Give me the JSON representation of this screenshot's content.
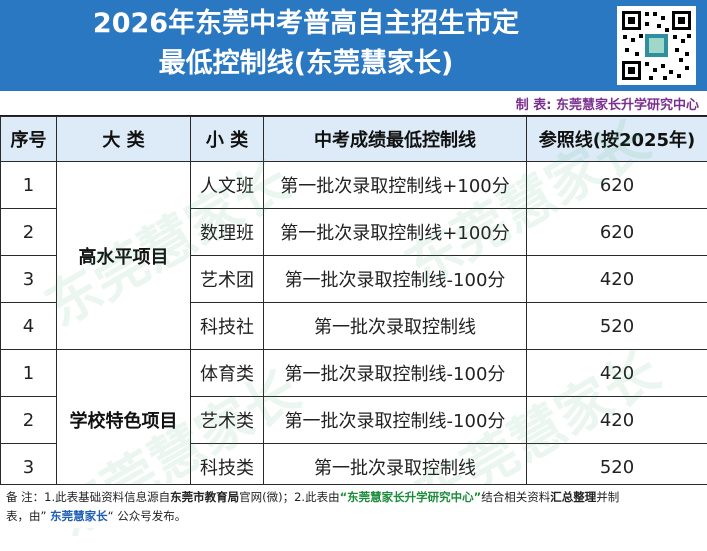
{
  "header": {
    "title_line1": "2026年东莞中考普高自主招生市定",
    "title_line2": "最低控制线(东莞慧家长)",
    "maker": "制 表: 东莞慧家长升学研究中心",
    "qr_label": "QR code"
  },
  "table": {
    "headers": {
      "no": "序号",
      "category": "大 类",
      "subcategory": "小 类",
      "line": "中考成绩最低控制线",
      "reference": "参照线(按2025年)"
    },
    "groups": [
      {
        "name": "高水平项目",
        "rows": [
          {
            "no": "1",
            "sub": "人文班",
            "line": "第一批次录取控制线+100分",
            "ref": "620"
          },
          {
            "no": "2",
            "sub": "数理班",
            "line": "第一批次录取控制线+100分",
            "ref": "620"
          },
          {
            "no": "3",
            "sub": "艺术团",
            "line": "第一批次录取控制线-100分",
            "ref": "420"
          },
          {
            "no": "4",
            "sub": "科技社",
            "line": "第一批次录取控制线",
            "ref": "520"
          }
        ]
      },
      {
        "name": "学校特色项目",
        "rows": [
          {
            "no": "1",
            "sub": "体育类",
            "line": "第一批次录取控制线-100分",
            "ref": "420"
          },
          {
            "no": "2",
            "sub": "艺术类",
            "line": "第一批次录取控制线-100分",
            "ref": "420"
          },
          {
            "no": "3",
            "sub": "科技类",
            "line": "第一批次录取控制线",
            "ref": "520"
          }
        ]
      }
    ]
  },
  "footer": {
    "prefix": "备  注：1.此表基础资料信息源自",
    "src_bold": "东莞市教育局",
    "after_src": "官网(微)；2.此表由",
    "org": "“东莞慧家长升学研究中心”",
    "mid": "结合相关资料",
    "bold2": "汇总整理",
    "tail": "并制",
    "line2_a": "表，由” ",
    "pub": "东莞慧家长",
    "line2_b": "“ 公众号发布。"
  },
  "watermark": "东莞慧家长",
  "colors": {
    "header_bg": "#2b78c2",
    "header_row_bg": "#dcebf7",
    "maker_text": "#7a2f8f",
    "watermark": "#3caa6e"
  }
}
